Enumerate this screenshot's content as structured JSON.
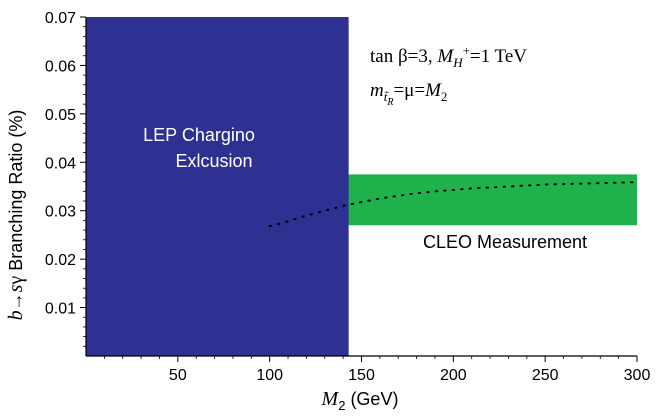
{
  "chart_data": {
    "type": "line",
    "title": "",
    "xlabel": {
      "var": "M",
      "sub": "2",
      "unit": " (GeV)"
    },
    "ylabel": {
      "pre": "b",
      "arrow": "→",
      "s": "s",
      "gamma": "γ",
      "rest": " Branching Ratio (%)"
    },
    "xlim": [
      0,
      300
    ],
    "ylim": [
      0,
      0.07
    ],
    "x_ticks": [
      50,
      100,
      150,
      200,
      250,
      300
    ],
    "x_tick_labels": [
      "50",
      "100",
      "150",
      "200",
      "250",
      "300"
    ],
    "y_ticks": [
      0.01,
      0.02,
      0.03,
      0.04,
      0.05,
      0.06,
      0.07
    ],
    "y_tick_labels": [
      "0.01",
      "0.02",
      "0.03",
      "0.04",
      "0.05",
      "0.06",
      "0.07"
    ],
    "grid": false,
    "regions": [
      {
        "name": "LEP Chargino Exlcusion",
        "x_range": [
          0,
          143
        ],
        "y_range": [
          0,
          0.07
        ],
        "color": "#2e3192",
        "label_lines": [
          "LEP Chargino",
          "Exlcusion"
        ]
      },
      {
        "name": "CLEO Measurement",
        "x_range": [
          0,
          300
        ],
        "y_range": [
          0.027,
          0.0375
        ],
        "color": "#1fb14c",
        "label_lines": [
          "CLEO Measurement"
        ]
      }
    ],
    "series": [
      {
        "style": "dotted",
        "color": "#000000",
        "x": [
          100,
          110,
          120,
          130,
          140,
          150,
          160,
          170,
          180,
          190,
          200,
          210,
          220,
          230,
          240,
          250,
          260,
          270,
          280,
          290,
          300
        ],
        "y": [
          0.0268,
          0.0278,
          0.029,
          0.03,
          0.031,
          0.0318,
          0.0325,
          0.0331,
          0.0336,
          0.034,
          0.0343,
          0.0346,
          0.0348,
          0.035,
          0.0352,
          0.0354,
          0.0355,
          0.0356,
          0.0357,
          0.0358,
          0.0359
        ]
      }
    ],
    "annotations": {
      "params_line1": {
        "tan": "tan ",
        "beta": "β",
        "eq3": "=3, ",
        "M": "M",
        "sub": "H",
        "sup": "+",
        "rest": "=1 TeV"
      },
      "params_line2": {
        "m": "m",
        "sub": "t̃",
        "subsub": "R",
        "rest1": "=μ=",
        "M": "M",
        "sub2": "2"
      }
    }
  }
}
